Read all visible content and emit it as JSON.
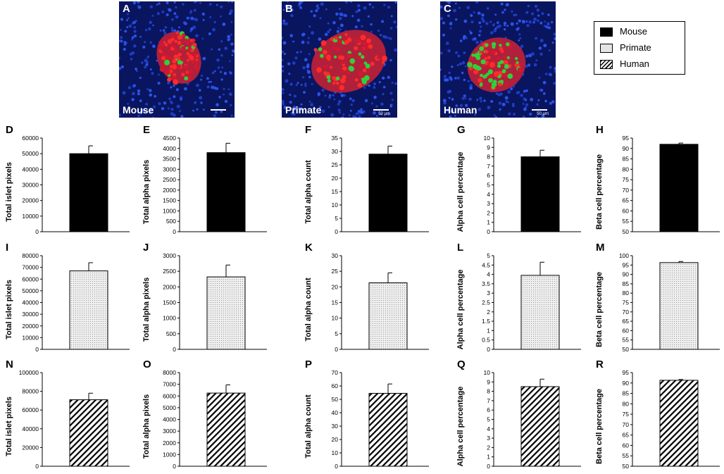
{
  "micrographs": [
    {
      "letter": "A",
      "species": "Mouse",
      "scale": ""
    },
    {
      "letter": "B",
      "species": "Primate",
      "scale": "50 µm"
    },
    {
      "letter": "C",
      "species": "Human",
      "scale": "50 µm"
    }
  ],
  "legend": {
    "items": [
      {
        "label": "Mouse",
        "pattern": "solid"
      },
      {
        "label": "Primate",
        "pattern": "dotted"
      },
      {
        "label": "Human",
        "pattern": "hatched"
      }
    ]
  },
  "colors": {
    "bar_solid": "#000000",
    "bar_dotted": "#e4e4e4",
    "axis": "#000000"
  },
  "chart_data": [
    {
      "type": "bar",
      "letter": "D",
      "pattern": "solid",
      "ylabel": "Total islet pixels",
      "ylim": [
        0,
        60000
      ],
      "ticks": [
        0,
        10000,
        20000,
        30000,
        40000,
        50000,
        60000
      ],
      "values": [
        50000
      ],
      "errors": [
        5000
      ]
    },
    {
      "type": "bar",
      "letter": "E",
      "pattern": "solid",
      "ylabel": "Total alpha pixels",
      "ylim": [
        0,
        4500
      ],
      "ticks": [
        0,
        500,
        1000,
        1500,
        2000,
        2500,
        3000,
        3500,
        4000,
        4500
      ],
      "values": [
        3800
      ],
      "errors": [
        450
      ]
    },
    {
      "type": "bar",
      "letter": "F",
      "pattern": "solid",
      "ylabel": "Total alpha count",
      "ylim": [
        0,
        35
      ],
      "ticks": [
        0,
        5,
        10,
        15,
        20,
        25,
        30,
        35
      ],
      "values": [
        29
      ],
      "errors": [
        3
      ]
    },
    {
      "type": "bar",
      "letter": "G",
      "pattern": "solid",
      "ylabel": "Alpha cell percentage",
      "ylim": [
        0,
        10
      ],
      "ticks": [
        0,
        1,
        2,
        3,
        4,
        5,
        6,
        7,
        8,
        9,
        10
      ],
      "values": [
        8
      ],
      "errors": [
        0.7
      ]
    },
    {
      "type": "bar",
      "letter": "H",
      "pattern": "solid",
      "ylabel": "Beta cell percentage",
      "ylim": [
        50,
        95
      ],
      "ticks": [
        50,
        55,
        60,
        65,
        70,
        75,
        80,
        85,
        90,
        95
      ],
      "values": [
        92
      ],
      "errors": [
        0.6
      ]
    },
    {
      "type": "bar",
      "letter": "I",
      "pattern": "dotted",
      "ylabel": "Total islet pixels",
      "ylim": [
        0,
        80000
      ],
      "ticks": [
        0,
        10000,
        20000,
        30000,
        40000,
        50000,
        60000,
        70000,
        80000
      ],
      "values": [
        67000
      ],
      "errors": [
        7000
      ]
    },
    {
      "type": "bar",
      "letter": "J",
      "pattern": "dotted",
      "ylabel": "Total alpha pixels",
      "ylim": [
        0,
        3000
      ],
      "ticks": [
        0,
        500,
        1000,
        1500,
        2000,
        2500,
        3000
      ],
      "values": [
        2320
      ],
      "errors": [
        380
      ]
    },
    {
      "type": "bar",
      "letter": "K",
      "pattern": "dotted",
      "ylabel": "Total alpha count",
      "ylim": [
        0,
        30
      ],
      "ticks": [
        0,
        5,
        10,
        15,
        20,
        25,
        30
      ],
      "values": [
        21.3
      ],
      "errors": [
        3.2
      ]
    },
    {
      "type": "bar",
      "letter": "L",
      "pattern": "dotted",
      "ylabel": "Alpha cell percentage",
      "ylim": [
        0,
        5
      ],
      "ticks": [
        0,
        0.5,
        1,
        1.5,
        2,
        2.5,
        3,
        3.5,
        4,
        4.5,
        5
      ],
      "values": [
        3.95
      ],
      "errors": [
        0.7
      ]
    },
    {
      "type": "bar",
      "letter": "M",
      "pattern": "dotted",
      "ylabel": "Beta cell percentage",
      "ylim": [
        50,
        100
      ],
      "ticks": [
        50,
        55,
        60,
        65,
        70,
        75,
        80,
        85,
        90,
        95,
        100
      ],
      "values": [
        96.3
      ],
      "errors": [
        0.6
      ]
    },
    {
      "type": "bar",
      "letter": "N",
      "pattern": "hatched",
      "ylabel": "Total islet pixels",
      "ylim": [
        0,
        100000
      ],
      "ticks": [
        0,
        20000,
        40000,
        60000,
        80000,
        100000
      ],
      "values": [
        71000
      ],
      "errors": [
        7000
      ]
    },
    {
      "type": "bar",
      "letter": "O",
      "pattern": "hatched",
      "ylabel": "Total alpha pixels",
      "ylim": [
        0,
        8000
      ],
      "ticks": [
        0,
        1000,
        2000,
        3000,
        4000,
        5000,
        6000,
        7000,
        8000
      ],
      "values": [
        6250
      ],
      "errors": [
        700
      ]
    },
    {
      "type": "bar",
      "letter": "P",
      "pattern": "hatched",
      "ylabel": "Total alpha count",
      "ylim": [
        0,
        70
      ],
      "ticks": [
        0,
        10,
        20,
        30,
        40,
        50,
        60,
        70
      ],
      "values": [
        54.5
      ],
      "errors": [
        7
      ]
    },
    {
      "type": "bar",
      "letter": "Q",
      "pattern": "hatched",
      "ylabel": "Alpha cell percentage",
      "ylim": [
        0,
        10
      ],
      "ticks": [
        0,
        1,
        2,
        3,
        4,
        5,
        6,
        7,
        8,
        9,
        10
      ],
      "values": [
        8.5
      ],
      "errors": [
        0.8
      ]
    },
    {
      "type": "bar",
      "letter": "R",
      "pattern": "hatched",
      "ylabel": "Beta cell percentage",
      "ylim": [
        50,
        95
      ],
      "ticks": [
        50,
        55,
        60,
        65,
        70,
        75,
        80,
        85,
        90,
        95
      ],
      "values": [
        91.3
      ],
      "errors": [
        0.4
      ]
    }
  ]
}
